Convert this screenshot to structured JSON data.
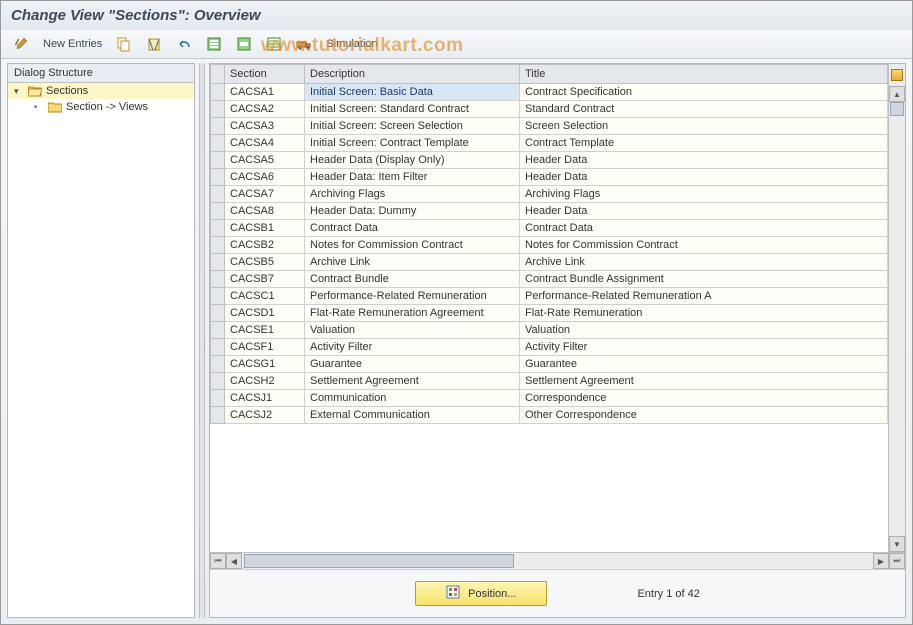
{
  "title": "Change View \"Sections\": Overview",
  "watermark": "www.tutorialkart.com",
  "toolbar": {
    "new_entries_label": "New Entries",
    "simulation_label": "Simulation"
  },
  "tree": {
    "header": "Dialog Structure",
    "root_label": "Sections",
    "child_label": "Section -> Views"
  },
  "columns": {
    "section": "Section",
    "description": "Description",
    "title": "Title"
  },
  "rows": [
    {
      "section": "CACSA1",
      "description": "Initial Screen: Basic Data",
      "title": "Contract Specification",
      "selected": true
    },
    {
      "section": "CACSA2",
      "description": "Initial Screen: Standard Contract",
      "title": "Standard Contract"
    },
    {
      "section": "CACSA3",
      "description": "Initial Screen: Screen Selection",
      "title": "Screen Selection"
    },
    {
      "section": "CACSA4",
      "description": "Initial Screen: Contract Template",
      "title": "Contract Template"
    },
    {
      "section": "CACSA5",
      "description": "Header Data (Display Only)",
      "title": "Header Data"
    },
    {
      "section": "CACSA6",
      "description": "Header Data: Item Filter",
      "title": "Header Data"
    },
    {
      "section": "CACSA7",
      "description": "Archiving Flags",
      "title": "Archiving Flags"
    },
    {
      "section": "CACSA8",
      "description": "Header Data: Dummy",
      "title": "Header Data"
    },
    {
      "section": "CACSB1",
      "description": "Contract Data",
      "title": "Contract Data"
    },
    {
      "section": "CACSB2",
      "description": "Notes for Commission Contract",
      "title": "Notes for Commission Contract"
    },
    {
      "section": "CACSB5",
      "description": "Archive Link",
      "title": "Archive Link"
    },
    {
      "section": "CACSB7",
      "description": "Contract Bundle",
      "title": "Contract Bundle Assignment"
    },
    {
      "section": "CACSC1",
      "description": "Performance-Related Remuneration",
      "title": "Performance-Related Remuneration A"
    },
    {
      "section": "CACSD1",
      "description": "Flat-Rate Remuneration Agreement",
      "title": "Flat-Rate Remuneration"
    },
    {
      "section": "CACSE1",
      "description": "Valuation",
      "title": "Valuation"
    },
    {
      "section": "CACSF1",
      "description": "Activity Filter",
      "title": "Activity Filter"
    },
    {
      "section": "CACSG1",
      "description": "Guarantee",
      "title": "Guarantee"
    },
    {
      "section": "CACSH2",
      "description": "Settlement Agreement",
      "title": "Settlement Agreement"
    },
    {
      "section": "CACSJ1",
      "description": "Communication",
      "title": "Correspondence"
    },
    {
      "section": "CACSJ2",
      "description": "External Communication",
      "title": "Other Correspondence"
    }
  ],
  "footer": {
    "position_label": "Position...",
    "entry_text": "Entry 1 of 42"
  },
  "colors": {
    "title_bg": "#eef2f6",
    "toolbar_bg": "#e9eef3",
    "tree_selected_bg": "#fdf6c7",
    "cell_bg": "#fffef6",
    "selected_cell_bg": "#d9e7f5",
    "header_bg": "#e4e8ec",
    "border": "#c0c0c0",
    "pos_btn_bg": "#f7e36b"
  }
}
